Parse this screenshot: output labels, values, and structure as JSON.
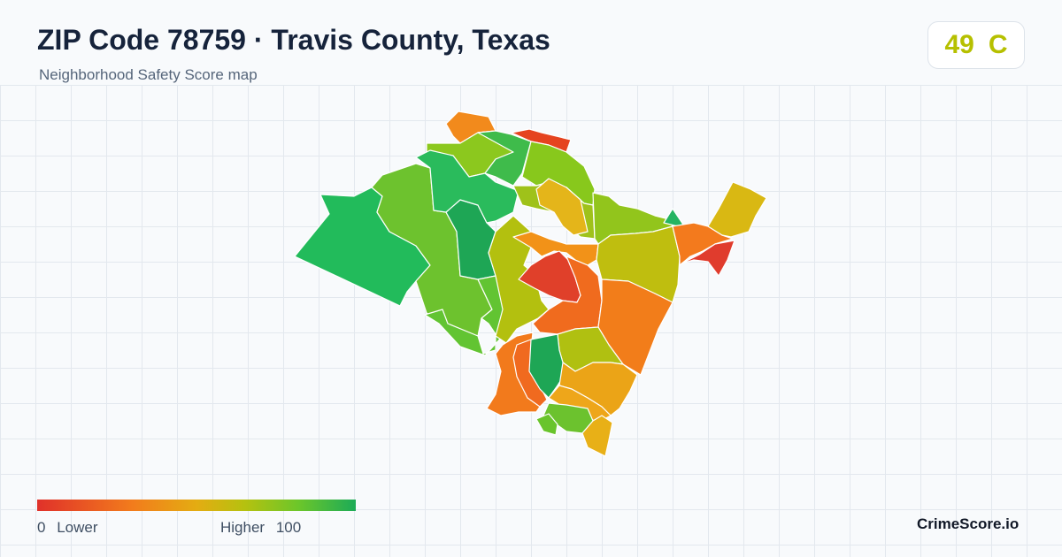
{
  "header": {
    "title": "ZIP Code 78759 · Travis County, Texas",
    "subtitle": "Neighborhood Safety Score map"
  },
  "score": {
    "value": "49",
    "grade": "C",
    "color": "#b6c000"
  },
  "legend": {
    "min_value": "0",
    "min_label": "Lower",
    "max_label": "Higher",
    "max_value": "100",
    "colors": [
      "#e0312a",
      "#f27c1c",
      "#e4ac12",
      "#b6c10f",
      "#6cc62a",
      "#1cab57"
    ]
  },
  "brand": "CrimeScore.io",
  "map": {
    "regions": [
      {
        "id": "far-west",
        "color": "#22bb5b"
      },
      {
        "id": "west-central",
        "color": "#6dc22e"
      },
      {
        "id": "west-inner",
        "color": "#1ea655"
      },
      {
        "id": "north-tip",
        "color": "#f28a1c"
      },
      {
        "id": "north-band",
        "color": "#8cc81e"
      },
      {
        "id": "north-east-strip",
        "color": "#e5431f"
      },
      {
        "id": "north-green",
        "color": "#3fbb4b"
      },
      {
        "id": "north-teal",
        "color": "#2abb5c"
      },
      {
        "id": "north-center",
        "color": "#88c81c"
      },
      {
        "id": "center-yellow",
        "color": "#e4b51a"
      },
      {
        "id": "center-north-strip",
        "color": "#9fc21a"
      },
      {
        "id": "center-olive",
        "color": "#b3c00f"
      },
      {
        "id": "center-orange",
        "color": "#f29218"
      },
      {
        "id": "center-red",
        "color": "#e0402a"
      },
      {
        "id": "center-orange-2",
        "color": "#f06b1e"
      },
      {
        "id": "east-band",
        "color": "#92c51c"
      },
      {
        "id": "east-olive",
        "color": "#bfbe0f"
      },
      {
        "id": "east-orange",
        "color": "#f27d1a"
      },
      {
        "id": "east-tip-orange",
        "color": "#f37a1d"
      },
      {
        "id": "east-tip-red",
        "color": "#e03c2d"
      },
      {
        "id": "east-tip-yellow",
        "color": "#d9b813"
      },
      {
        "id": "east-teal",
        "color": "#25b462"
      },
      {
        "id": "south-olive",
        "color": "#b0c011"
      },
      {
        "id": "south-orange-west",
        "color": "#f27a1c"
      },
      {
        "id": "south-orange-inner",
        "color": "#f06a1f"
      },
      {
        "id": "south-green",
        "color": "#1ea655"
      },
      {
        "id": "south-amber",
        "color": "#eba417"
      },
      {
        "id": "south-amber-2",
        "color": "#eea61a"
      },
      {
        "id": "south-lime",
        "color": "#6cc22e"
      },
      {
        "id": "south-tip",
        "color": "#e8b017"
      },
      {
        "id": "south-lime-small",
        "color": "#69c42c"
      },
      {
        "id": "west-lime-low",
        "color": "#62c432"
      }
    ]
  }
}
